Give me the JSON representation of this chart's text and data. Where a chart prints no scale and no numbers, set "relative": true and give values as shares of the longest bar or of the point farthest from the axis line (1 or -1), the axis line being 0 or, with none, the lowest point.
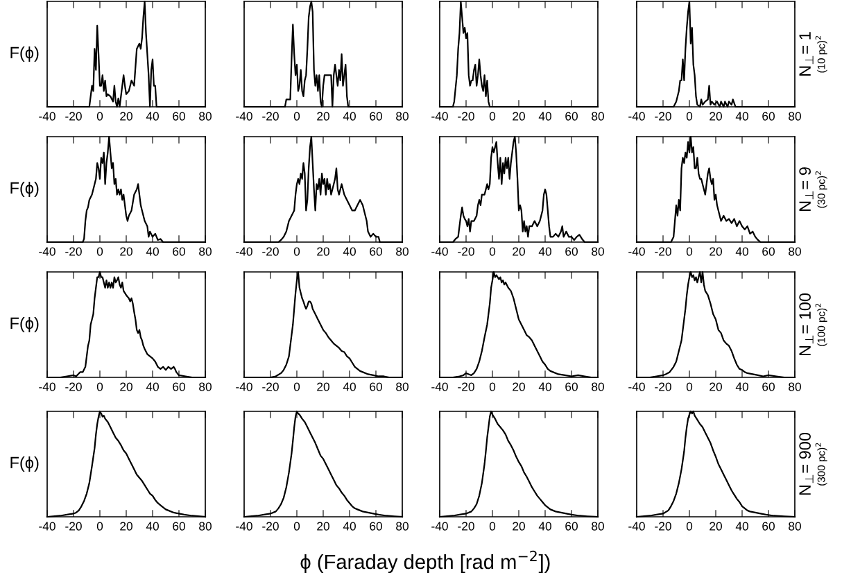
{
  "chart_data": [
    {
      "type": "line",
      "relative": true,
      "color": "#000000",
      "xlim": [
        -40,
        80
      ],
      "xticks": [
        -40,
        -20,
        0,
        20,
        40,
        60,
        80
      ],
      "tick_labels": "x",
      "ylabel": "F(ϕ)",
      "x": [
        -40,
        -8,
        -6,
        -5,
        -4,
        -3,
        -2,
        -1,
        0,
        1,
        2,
        3,
        4,
        5,
        6,
        8,
        10,
        11,
        12,
        13,
        14,
        15,
        16,
        17,
        18,
        19,
        20,
        22,
        24,
        26,
        28,
        30,
        31,
        32,
        33,
        34,
        35,
        36,
        37,
        38,
        39,
        40,
        41,
        42,
        43,
        80
      ],
      "values": [
        0,
        0,
        0.2,
        0.15,
        0.55,
        0.35,
        0.77,
        0.5,
        0.2,
        0.2,
        0.3,
        0.15,
        0.25,
        0.1,
        0.12,
        0.1,
        0.05,
        0.2,
        0.05,
        0,
        0.08,
        0,
        0.1,
        0.2,
        0.3,
        0.2,
        0.12,
        0.15,
        0.25,
        0.2,
        0.55,
        0.6,
        0.55,
        0.65,
        0.85,
        1.0,
        0.7,
        0.5,
        0.3,
        0,
        0.35,
        0.45,
        0.2,
        0.2,
        0,
        0
      ]
    },
    {
      "type": "line",
      "relative": true,
      "color": "#000000",
      "xlim": [
        -40,
        80
      ],
      "xticks": [
        -40,
        -20,
        0,
        20,
        40,
        60,
        80
      ],
      "tick_labels": "x",
      "x": [
        -40,
        -9,
        -8,
        -5,
        -4,
        -3,
        -2,
        -1,
        0,
        1,
        2,
        3,
        4,
        5,
        6,
        7,
        8,
        9,
        10,
        11,
        12,
        13,
        14,
        15,
        16,
        17,
        18,
        19,
        20,
        21,
        24,
        26,
        27,
        28,
        29,
        30,
        31,
        32,
        33,
        34,
        35,
        36,
        37,
        38,
        39,
        80
      ],
      "values": [
        0,
        0,
        0.07,
        0.07,
        0.45,
        0.78,
        0.5,
        0.3,
        0.4,
        0.15,
        0.2,
        0.35,
        0.15,
        0.1,
        0.25,
        0.3,
        0.55,
        0.85,
        0.95,
        1.0,
        0.9,
        0.35,
        0.2,
        0.3,
        0.15,
        0.3,
        0.05,
        0,
        0.2,
        0.3,
        0.3,
        0.3,
        0,
        0.3,
        0.4,
        0.3,
        0.2,
        0.35,
        0.25,
        0.5,
        0.2,
        0.3,
        0.4,
        0.1,
        0,
        0
      ]
    },
    {
      "type": "line",
      "relative": true,
      "color": "#000000",
      "xlim": [
        -40,
        80
      ],
      "xticks": [
        -40,
        -20,
        0,
        20,
        40,
        60,
        80
      ],
      "tick_labels": "x",
      "x": [
        -40,
        -30,
        -29,
        -27,
        -26,
        -25,
        -24,
        -23,
        -22,
        -21,
        -20,
        -19,
        -18,
        -17,
        -16,
        -15,
        -14,
        -13,
        -12,
        -11,
        -10,
        -9,
        -8,
        -7,
        -6,
        -5,
        -4,
        -3,
        -2,
        80
      ],
      "values": [
        0,
        0,
        0.05,
        0.3,
        0.55,
        0.7,
        1.0,
        0.85,
        0.7,
        0.75,
        0.65,
        0.7,
        0.3,
        0.2,
        0.25,
        0.25,
        0.35,
        0.4,
        0.2,
        0.3,
        0.45,
        0.3,
        0.2,
        0.15,
        0.3,
        0.1,
        0.25,
        0.05,
        0,
        0
      ]
    },
    {
      "type": "line",
      "relative": true,
      "color": "#000000",
      "xlim": [
        -40,
        80
      ],
      "xticks": [
        -40,
        -20,
        0,
        20,
        40,
        60,
        80
      ],
      "tick_labels": "x",
      "y2label": "N$_{⊥}$= 1",
      "annotations": [
        "(10 pc)$^{2}$"
      ],
      "x": [
        -40,
        -12,
        -10,
        -8,
        -7,
        -6,
        -5,
        -4,
        -3,
        -2,
        -1,
        0,
        1,
        2,
        3,
        4,
        5,
        6,
        8,
        9,
        10,
        12,
        14,
        15,
        16,
        17,
        19,
        21,
        23,
        24,
        26,
        27,
        29,
        30,
        32,
        33,
        35,
        80
      ],
      "values": [
        0,
        0,
        0.05,
        0.15,
        0.25,
        0.25,
        0.45,
        0.25,
        0.55,
        0.75,
        0.9,
        1.0,
        0.6,
        0.75,
        0.4,
        0.3,
        0.1,
        0.02,
        0,
        0.07,
        0.02,
        0.05,
        0.07,
        0.2,
        0.02,
        0.05,
        0.02,
        0.05,
        0,
        0.05,
        0,
        0.05,
        0,
        0.05,
        0.02,
        0.07,
        0,
        0
      ]
    },
    {
      "type": "line",
      "relative": true,
      "color": "#000000",
      "xlim": [
        -40,
        80
      ],
      "xticks": [
        -40,
        -20,
        0,
        20,
        40,
        60,
        80
      ],
      "tick_labels": "x",
      "ylabel": "F(ϕ)",
      "x": [
        -40,
        -13,
        -12,
        -11,
        -10,
        -9,
        -8,
        -6,
        -4,
        -3,
        -2,
        -1,
        0,
        1,
        2,
        3,
        4,
        5,
        6,
        7,
        8,
        9,
        10,
        11,
        12,
        13,
        14,
        15,
        16,
        17,
        18,
        19,
        20,
        21,
        22,
        24,
        26,
        28,
        29,
        30,
        31,
        32,
        34,
        36,
        37,
        38,
        40,
        42,
        44,
        46,
        48,
        80
      ],
      "values": [
        0,
        0,
        0.03,
        0.2,
        0.3,
        0.33,
        0.4,
        0.45,
        0.55,
        0.6,
        0.75,
        0.7,
        0.6,
        0.8,
        0.75,
        0.85,
        0.55,
        0.75,
        0.85,
        1.0,
        0.85,
        0.7,
        0.75,
        0.55,
        0.6,
        0.45,
        0.5,
        0.45,
        0.5,
        0.4,
        0.45,
        0.35,
        0.25,
        0.2,
        0.25,
        0.3,
        0.45,
        0.5,
        0.55,
        0.45,
        0.35,
        0.3,
        0.2,
        0.15,
        0.05,
        0.1,
        0.05,
        0.08,
        0.02,
        0.03,
        0,
        0
      ]
    },
    {
      "type": "line",
      "relative": true,
      "color": "#000000",
      "xlim": [
        -40,
        80
      ],
      "xticks": [
        -40,
        -20,
        0,
        20,
        40,
        60,
        80
      ],
      "tick_labels": "x",
      "x": [
        -40,
        -14,
        -12,
        -10,
        -8,
        -6,
        -4,
        -2,
        -1,
        0,
        1,
        2,
        3,
        4,
        5,
        6,
        7,
        8,
        9,
        10,
        11,
        12,
        13,
        14,
        15,
        16,
        17,
        18,
        19,
        20,
        21,
        22,
        23,
        24,
        25,
        26,
        28,
        29,
        30,
        31,
        32,
        34,
        36,
        38,
        40,
        42,
        44,
        46,
        48,
        50,
        52,
        53,
        54,
        56,
        58,
        60,
        62,
        63,
        80
      ],
      "values": [
        0,
        0,
        0.02,
        0.05,
        0.1,
        0.2,
        0.25,
        0.3,
        0.45,
        0.55,
        0.6,
        0.55,
        0.65,
        0.6,
        0.75,
        0.65,
        0.3,
        0.4,
        0.7,
        0.9,
        1.0,
        0.75,
        0.5,
        0.3,
        0.55,
        0.5,
        0.6,
        0.45,
        0.65,
        0.55,
        0.6,
        0.45,
        0.6,
        0.5,
        0.55,
        0.45,
        0.55,
        0.6,
        0.7,
        0.5,
        0.45,
        0.55,
        0.45,
        0.4,
        0.35,
        0.3,
        0.3,
        0.35,
        0.4,
        0.35,
        0.25,
        0.2,
        0.1,
        0.05,
        0.08,
        0.05,
        0.05,
        0,
        0
      ]
    },
    {
      "type": "line",
      "relative": true,
      "color": "#000000",
      "xlim": [
        -40,
        80
      ],
      "xticks": [
        -40,
        -20,
        0,
        20,
        40,
        60,
        80
      ],
      "tick_labels": "x",
      "x": [
        -40,
        -30,
        -28,
        -26,
        -25,
        -24,
        -23,
        -22,
        -21,
        -20,
        -19,
        -18,
        -17,
        -16,
        -14,
        -12,
        -11,
        -10,
        -9,
        -8,
        -6,
        -4,
        -3,
        -2,
        -1,
        0,
        1,
        2,
        3,
        4,
        5,
        6,
        7,
        8,
        9,
        10,
        11,
        12,
        13,
        14,
        15,
        16,
        17,
        18,
        19,
        20,
        21,
        22,
        23,
        24,
        25,
        26,
        27,
        28,
        30,
        32,
        34,
        36,
        38,
        39,
        40,
        41,
        42,
        43,
        44,
        46,
        48,
        50,
        52,
        53,
        54,
        56,
        58,
        60,
        62,
        64,
        66,
        68,
        70,
        80
      ],
      "values": [
        0,
        0,
        0.03,
        0.05,
        0.15,
        0.25,
        0.33,
        0.25,
        0.22,
        0.2,
        0.15,
        0.22,
        0.1,
        0.2,
        0.2,
        0.25,
        0.35,
        0.4,
        0.35,
        0.45,
        0.45,
        0.55,
        0.5,
        0.55,
        0.8,
        0.9,
        0.85,
        0.9,
        0.95,
        0.75,
        0.6,
        0.8,
        0.55,
        0.75,
        0.65,
        0.8,
        0.7,
        0.8,
        0.6,
        0.75,
        0.85,
        0.95,
        1.0,
        0.85,
        0.6,
        0.3,
        0.35,
        0.3,
        0.1,
        0.2,
        0.1,
        0.15,
        0.05,
        0.15,
        0.15,
        0.2,
        0.15,
        0.2,
        0.3,
        0.45,
        0.5,
        0.45,
        0.3,
        0.15,
        0.05,
        0.05,
        0.08,
        0.05,
        0.1,
        0.15,
        0.05,
        0.1,
        0.05,
        0.05,
        0.02,
        0.05,
        0.07,
        0.03,
        0,
        0
      ]
    },
    {
      "type": "line",
      "relative": true,
      "color": "#000000",
      "xlim": [
        -40,
        80
      ],
      "xticks": [
        -40,
        -20,
        0,
        20,
        40,
        60,
        80
      ],
      "tick_labels": "x",
      "y2label": "N$_{⊥}$= 9",
      "annotations": [
        "(30 pc)$^{2}$"
      ],
      "x": [
        -40,
        -14,
        -12,
        -11,
        -10,
        -9,
        -8,
        -7,
        -6,
        -5,
        -4,
        -3,
        -2,
        -1,
        0,
        1,
        2,
        3,
        4,
        5,
        6,
        7,
        8,
        9,
        10,
        11,
        12,
        13,
        14,
        15,
        16,
        17,
        18,
        19,
        20,
        21,
        22,
        23,
        24,
        26,
        28,
        30,
        32,
        34,
        36,
        38,
        40,
        42,
        44,
        46,
        48,
        50,
        52,
        54,
        80
      ],
      "values": [
        0,
        0,
        0.05,
        0.2,
        0.35,
        0.25,
        0.4,
        0.3,
        0.7,
        0.8,
        0.75,
        0.85,
        0.8,
        0.95,
        0.85,
        1.0,
        0.85,
        0.9,
        0.7,
        0.7,
        0.8,
        0.65,
        0.6,
        0.6,
        0.55,
        0.5,
        0.45,
        0.55,
        0.65,
        0.7,
        0.6,
        0.55,
        0.6,
        0.4,
        0.45,
        0.35,
        0.3,
        0.25,
        0.2,
        0.25,
        0.2,
        0.22,
        0.18,
        0.22,
        0.15,
        0.2,
        0.15,
        0.12,
        0.15,
        0.08,
        0.1,
        0.05,
        0.02,
        0,
        0
      ]
    },
    {
      "type": "line",
      "relative": true,
      "color": "#000000",
      "xlim": [
        -40,
        80
      ],
      "xticks": [
        -40,
        -20,
        0,
        20,
        40,
        60,
        80
      ],
      "tick_labels": "x",
      "ylabel": "F(ϕ)",
      "x": [
        -40,
        -30,
        -25,
        -20,
        -18,
        -15,
        -13,
        -11,
        -10,
        -9,
        -8,
        -7,
        -6,
        -5,
        -4,
        -3,
        -2,
        -1,
        0,
        1,
        2,
        3,
        4,
        5,
        6,
        7,
        8,
        9,
        10,
        11,
        12,
        13,
        14,
        15,
        16,
        17,
        18,
        19,
        20,
        22,
        23,
        24,
        25,
        26,
        27,
        28,
        29,
        30,
        31,
        32,
        33,
        34,
        36,
        38,
        40,
        42,
        44,
        46,
        48,
        50,
        52,
        54,
        56,
        57,
        58,
        60,
        65,
        70,
        80
      ],
      "values": [
        0,
        0,
        0.01,
        0.02,
        0.01,
        0.05,
        0.05,
        0.1,
        0.2,
        0.3,
        0.35,
        0.5,
        0.55,
        0.6,
        0.75,
        0.85,
        0.95,
        0.95,
        1.0,
        0.95,
        0.95,
        0.9,
        0.85,
        0.92,
        0.85,
        0.9,
        0.85,
        0.9,
        0.85,
        0.95,
        0.9,
        0.92,
        0.95,
        0.88,
        0.85,
        0.9,
        0.82,
        0.8,
        0.78,
        0.75,
        0.72,
        0.75,
        0.7,
        0.62,
        0.55,
        0.45,
        0.42,
        0.45,
        0.38,
        0.35,
        0.3,
        0.27,
        0.22,
        0.2,
        0.18,
        0.15,
        0.1,
        0.08,
        0.1,
        0.07,
        0.1,
        0.08,
        0.1,
        0.08,
        0.05,
        0.02,
        0.01,
        0,
        0
      ]
    },
    {
      "type": "line",
      "relative": true,
      "color": "#000000",
      "xlim": [
        -40,
        80
      ],
      "xticks": [
        -40,
        -20,
        0,
        20,
        40,
        60,
        80
      ],
      "tick_labels": "x",
      "x": [
        -40,
        -20,
        -16,
        -12,
        -10,
        -8,
        -6,
        -5,
        -4,
        -3,
        -2,
        -1,
        0,
        1,
        2,
        3,
        4,
        5,
        6,
        7,
        8,
        9,
        10,
        11,
        12,
        14,
        16,
        18,
        20,
        22,
        24,
        26,
        28,
        30,
        32,
        34,
        36,
        38,
        40,
        42,
        44,
        46,
        48,
        50,
        54,
        58,
        62,
        66,
        70,
        80
      ],
      "values": [
        0,
        0,
        0.01,
        0.04,
        0.07,
        0.12,
        0.2,
        0.3,
        0.4,
        0.5,
        0.65,
        0.8,
        0.92,
        1.0,
        0.85,
        0.8,
        0.75,
        0.72,
        0.68,
        0.65,
        0.68,
        0.72,
        0.72,
        0.7,
        0.65,
        0.6,
        0.55,
        0.5,
        0.45,
        0.42,
        0.38,
        0.35,
        0.32,
        0.3,
        0.28,
        0.25,
        0.24,
        0.2,
        0.18,
        0.14,
        0.1,
        0.08,
        0.06,
        0.05,
        0.03,
        0.02,
        0.01,
        0.01,
        0,
        0
      ]
    },
    {
      "type": "line",
      "relative": true,
      "color": "#000000",
      "xlim": [
        -40,
        80
      ],
      "xticks": [
        -40,
        -20,
        0,
        20,
        40,
        60,
        80
      ],
      "tick_labels": "x",
      "x": [
        -40,
        -30,
        -25,
        -22,
        -20,
        -18,
        -16,
        -14,
        -12,
        -10,
        -8,
        -6,
        -4,
        -3,
        -2,
        -1,
        0,
        1,
        2,
        3,
        4,
        5,
        6,
        7,
        8,
        9,
        10,
        12,
        14,
        16,
        18,
        20,
        22,
        24,
        26,
        28,
        30,
        32,
        34,
        36,
        38,
        40,
        42,
        44,
        46,
        50,
        55,
        60,
        65,
        70,
        75,
        80
      ],
      "values": [
        0,
        0,
        0.01,
        0.02,
        0.04,
        0.03,
        0.02,
        0.04,
        0.08,
        0.15,
        0.25,
        0.38,
        0.5,
        0.6,
        0.7,
        0.85,
        0.92,
        1.0,
        0.95,
        0.97,
        0.95,
        0.93,
        0.95,
        0.9,
        0.92,
        0.88,
        0.9,
        0.85,
        0.82,
        0.75,
        0.65,
        0.55,
        0.5,
        0.45,
        0.4,
        0.38,
        0.35,
        0.3,
        0.25,
        0.2,
        0.15,
        0.12,
        0.08,
        0.06,
        0.05,
        0.03,
        0.02,
        0.01,
        0.02,
        0.01,
        0,
        0
      ]
    },
    {
      "type": "line",
      "relative": true,
      "color": "#000000",
      "xlim": [
        -40,
        80
      ],
      "xticks": [
        -40,
        -20,
        0,
        20,
        40,
        60,
        80
      ],
      "tick_labels": "x",
      "y2label": "N$_{⊥}$= 100",
      "annotations": [
        "(100 pc)$^{2}$"
      ],
      "x": [
        -40,
        -30,
        -25,
        -20,
        -18,
        -15,
        -12,
        -10,
        -8,
        -6,
        -4,
        -3,
        -2,
        -1,
        0,
        1,
        2,
        3,
        4,
        5,
        6,
        7,
        8,
        9,
        10,
        11,
        12,
        14,
        16,
        18,
        20,
        22,
        24,
        26,
        28,
        30,
        32,
        34,
        36,
        38,
        40,
        42,
        44,
        48,
        52,
        56,
        60,
        66,
        72,
        80
      ],
      "values": [
        0,
        0,
        0.01,
        0.02,
        0.03,
        0.05,
        0.1,
        0.15,
        0.25,
        0.35,
        0.55,
        0.65,
        0.78,
        0.88,
        0.95,
        1.0,
        0.95,
        0.97,
        0.92,
        0.95,
        0.9,
        0.95,
        1.0,
        0.9,
        1.0,
        0.88,
        0.82,
        0.78,
        0.7,
        0.6,
        0.55,
        0.45,
        0.42,
        0.35,
        0.32,
        0.3,
        0.25,
        0.18,
        0.12,
        0.08,
        0.07,
        0.05,
        0.04,
        0.03,
        0.02,
        0.01,
        0.02,
        0.01,
        0,
        0
      ]
    },
    {
      "type": "line",
      "relative": true,
      "color": "#000000",
      "xlim": [
        -40,
        80
      ],
      "xticks": [
        -40,
        -20,
        0,
        20,
        40,
        60,
        80
      ],
      "tick_labels": "x",
      "ylabel": "F(ϕ)",
      "x": [
        -40,
        -30,
        -25,
        -20,
        -18,
        -16,
        -14,
        -12,
        -10,
        -8,
        -6,
        -4,
        -3,
        -2,
        -1,
        0,
        1,
        2,
        3,
        4,
        6,
        8,
        10,
        12,
        14,
        16,
        18,
        20,
        22,
        24,
        26,
        28,
        30,
        32,
        34,
        36,
        38,
        40,
        42,
        44,
        46,
        48,
        50,
        52,
        56,
        60,
        64,
        70,
        76,
        80
      ],
      "values": [
        0,
        0.01,
        0.02,
        0.03,
        0.04,
        0.06,
        0.1,
        0.15,
        0.22,
        0.32,
        0.48,
        0.65,
        0.78,
        0.88,
        0.95,
        1.0,
        0.98,
        0.95,
        0.96,
        0.93,
        0.9,
        0.85,
        0.8,
        0.75,
        0.72,
        0.68,
        0.63,
        0.6,
        0.55,
        0.5,
        0.45,
        0.4,
        0.37,
        0.34,
        0.3,
        0.26,
        0.22,
        0.2,
        0.16,
        0.13,
        0.11,
        0.09,
        0.07,
        0.06,
        0.04,
        0.03,
        0.02,
        0.01,
        0.005,
        0
      ]
    },
    {
      "type": "line",
      "relative": true,
      "color": "#000000",
      "xlim": [
        -40,
        80
      ],
      "xticks": [
        -40,
        -20,
        0,
        20,
        40,
        60,
        80
      ],
      "tick_labels": "x",
      "x": [
        -40,
        -30,
        -25,
        -20,
        -16,
        -14,
        -12,
        -10,
        -8,
        -6,
        -4,
        -3,
        -2,
        -1,
        0,
        1,
        2,
        3,
        4,
        6,
        8,
        10,
        12,
        14,
        16,
        18,
        20,
        22,
        24,
        26,
        28,
        30,
        32,
        34,
        36,
        38,
        40,
        42,
        44,
        46,
        50,
        54,
        58,
        62,
        68,
        74,
        80
      ],
      "values": [
        0,
        0.01,
        0.02,
        0.03,
        0.05,
        0.08,
        0.12,
        0.18,
        0.28,
        0.42,
        0.6,
        0.72,
        0.85,
        0.95,
        1.0,
        0.98,
        0.97,
        0.95,
        0.93,
        0.9,
        0.85,
        0.8,
        0.75,
        0.7,
        0.64,
        0.58,
        0.55,
        0.5,
        0.45,
        0.4,
        0.35,
        0.3,
        0.27,
        0.23,
        0.2,
        0.16,
        0.13,
        0.1,
        0.08,
        0.07,
        0.05,
        0.04,
        0.03,
        0.02,
        0.01,
        0.005,
        0
      ]
    },
    {
      "type": "line",
      "relative": true,
      "color": "#000000",
      "xlim": [
        -40,
        80
      ],
      "xticks": [
        -40,
        -20,
        0,
        20,
        40,
        60,
        80
      ],
      "tick_labels": "x",
      "x": [
        -40,
        -30,
        -25,
        -20,
        -16,
        -14,
        -12,
        -10,
        -8,
        -6,
        -5,
        -4,
        -3,
        -2,
        -1,
        0,
        2,
        4,
        6,
        8,
        10,
        12,
        14,
        16,
        18,
        20,
        22,
        24,
        26,
        28,
        30,
        32,
        34,
        36,
        38,
        40,
        42,
        44,
        48,
        52,
        56,
        60,
        66,
        72,
        80
      ],
      "values": [
        0,
        0.01,
        0.02,
        0.03,
        0.05,
        0.08,
        0.12,
        0.2,
        0.32,
        0.5,
        0.62,
        0.75,
        0.85,
        0.95,
        1.0,
        0.97,
        0.93,
        0.88,
        0.85,
        0.82,
        0.78,
        0.72,
        0.68,
        0.63,
        0.57,
        0.52,
        0.48,
        0.42,
        0.38,
        0.33,
        0.28,
        0.24,
        0.2,
        0.17,
        0.14,
        0.11,
        0.09,
        0.07,
        0.05,
        0.04,
        0.03,
        0.02,
        0.01,
        0.005,
        0
      ]
    },
    {
      "type": "line",
      "relative": true,
      "color": "#000000",
      "xlim": [
        -40,
        80
      ],
      "xticks": [
        -40,
        -20,
        0,
        20,
        40,
        60,
        80
      ],
      "tick_labels": "x",
      "y2label": "N$_{⊥}$= 900",
      "annotations": [
        "(300 pc)$^{2}$"
      ],
      "xlabel": "ϕ (Faraday depth [rad m$^{−2}$])",
      "x": [
        -40,
        -30,
        -25,
        -20,
        -16,
        -14,
        -12,
        -10,
        -8,
        -6,
        -4,
        -3,
        -2,
        -1,
        0,
        1,
        2,
        3,
        4,
        6,
        8,
        10,
        12,
        14,
        16,
        18,
        20,
        22,
        24,
        26,
        28,
        30,
        32,
        34,
        36,
        38,
        40,
        42,
        44,
        46,
        50,
        54,
        58,
        64,
        72,
        80
      ],
      "values": [
        0,
        0.01,
        0.02,
        0.03,
        0.06,
        0.1,
        0.15,
        0.22,
        0.32,
        0.45,
        0.62,
        0.75,
        0.85,
        0.93,
        0.97,
        1.0,
        0.98,
        1.0,
        0.96,
        0.92,
        0.88,
        0.85,
        0.8,
        0.75,
        0.7,
        0.63,
        0.57,
        0.5,
        0.45,
        0.4,
        0.35,
        0.3,
        0.25,
        0.21,
        0.17,
        0.14,
        0.1,
        0.08,
        0.06,
        0.05,
        0.04,
        0.03,
        0.02,
        0.01,
        0.005,
        0
      ]
    }
  ]
}
